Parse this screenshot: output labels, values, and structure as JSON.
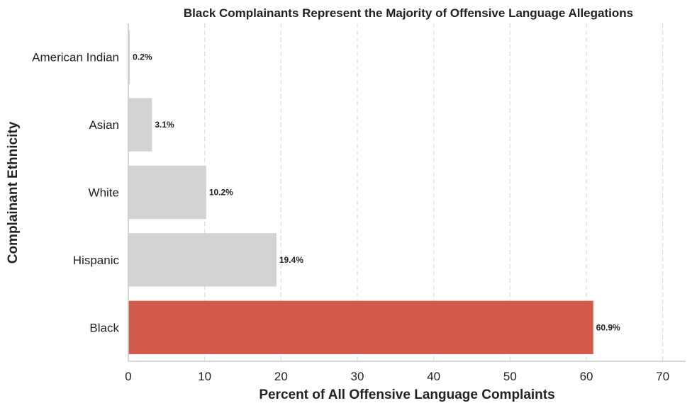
{
  "chart_data": {
    "type": "bar",
    "orientation": "horizontal",
    "title": "Black Complainants Represent the Majority of Offensive Language Allegations",
    "xlabel": "Percent of All Offensive Language Complaints",
    "ylabel": "Complainant Ethnicity",
    "categories": [
      "American Indian",
      "Asian",
      "White",
      "Hispanic",
      "Black"
    ],
    "values": [
      0.2,
      3.1,
      10.2,
      19.4,
      60.9
    ],
    "value_labels": [
      "0.2%",
      "3.1%",
      "10.2%",
      "19.4%",
      "60.9%"
    ],
    "xlim": [
      0,
      73
    ],
    "xticks": [
      0,
      10,
      20,
      30,
      40,
      50,
      60,
      70
    ],
    "xtick_labels": [
      "0",
      "10",
      "20",
      "30",
      "40",
      "50",
      "60",
      "70"
    ],
    "grid": "x-dashed",
    "colors": {
      "default_bar": "#d3d3d3",
      "highlight_bar": "#d35b4e",
      "highlight_category": "Black"
    }
  }
}
